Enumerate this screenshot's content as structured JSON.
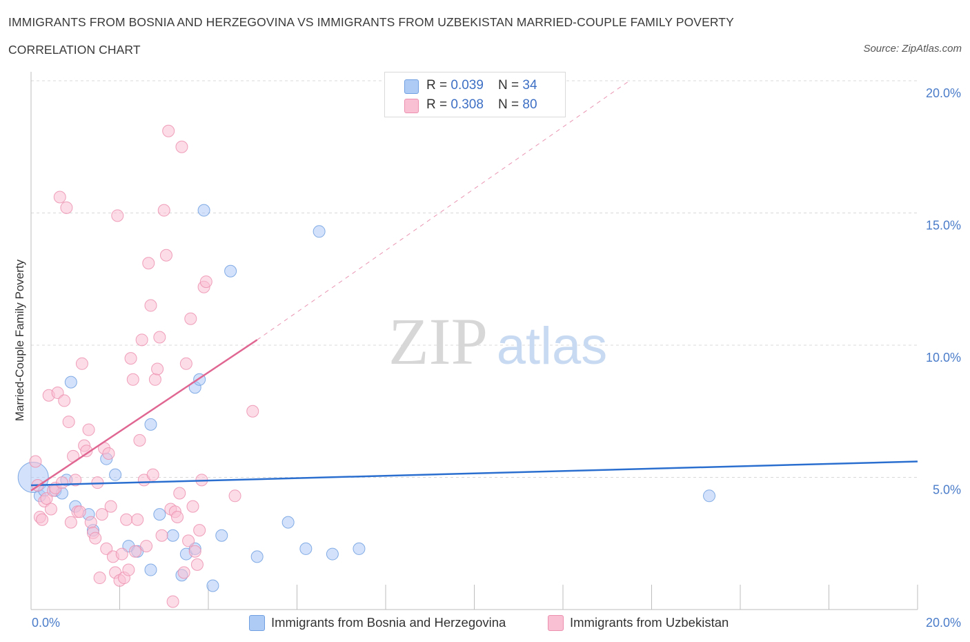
{
  "header": {
    "title_line1": "IMMIGRANTS FROM BOSNIA AND HERZEGOVINA VS IMMIGRANTS FROM UZBEKISTAN MARRIED-COUPLE FAMILY POVERTY",
    "title_line2": "CORRELATION CHART",
    "source": "Source: ZipAtlas.com"
  },
  "watermark": {
    "zip": "ZIP",
    "atlas": "atlas"
  },
  "legend": {
    "r_label": "R = ",
    "n_label": "N = ",
    "rows": [
      {
        "r": "0.039",
        "n": "34"
      },
      {
        "r": "0.308",
        "n": "80"
      }
    ]
  },
  "colors": {
    "bosnia_fill": "#aecbf5",
    "bosnia_stroke": "#6f9fe0",
    "bosnia_line": "#2a6fcf",
    "uzbek_fill": "#f9c0d3",
    "uzbek_stroke": "#ec8fae",
    "uzbek_line": "#e06792",
    "grid": "#d8d8d8",
    "axis_text": "#4a7cc9"
  },
  "chart_data": {
    "type": "scatter",
    "title": "IMMIGRANTS FROM BOSNIA AND HERZEGOVINA VS IMMIGRANTS FROM UZBEKISTAN MARRIED-COUPLE FAMILY POVERTY CORRELATION CHART",
    "xlabel": "",
    "ylabel": "Married-Couple Family Poverty",
    "xlim": [
      0,
      20
    ],
    "ylim": [
      0,
      20
    ],
    "x_tick_labels": [
      "0.0%",
      "20.0%"
    ],
    "y_ticks": [
      5,
      10,
      15,
      20
    ],
    "y_tick_labels": [
      "5.0%",
      "10.0%",
      "15.0%",
      "20.0%"
    ],
    "grid": true,
    "legend_position": "top-center",
    "series": [
      {
        "name": "Immigrants from Bosnia and Herzegovina",
        "R": 0.039,
        "N": 34,
        "trend": {
          "x": [
            0,
            20
          ],
          "y": [
            4.7,
            5.6
          ]
        },
        "points": [
          [
            0.05,
            5.0
          ],
          [
            0.2,
            4.3
          ],
          [
            0.3,
            4.5
          ],
          [
            0.55,
            4.5
          ],
          [
            0.7,
            4.4
          ],
          [
            0.8,
            4.9
          ],
          [
            0.9,
            8.6
          ],
          [
            1.0,
            3.9
          ],
          [
            1.3,
            3.6
          ],
          [
            1.4,
            3.0
          ],
          [
            1.7,
            5.7
          ],
          [
            1.9,
            5.1
          ],
          [
            2.2,
            2.4
          ],
          [
            2.4,
            2.2
          ],
          [
            2.7,
            7.0
          ],
          [
            2.7,
            1.5
          ],
          [
            2.9,
            3.6
          ],
          [
            3.2,
            2.8
          ],
          [
            3.4,
            1.3
          ],
          [
            3.5,
            2.1
          ],
          [
            3.7,
            2.3
          ],
          [
            3.7,
            8.4
          ],
          [
            3.8,
            8.7
          ],
          [
            3.9,
            15.1
          ],
          [
            4.1,
            0.9
          ],
          [
            4.3,
            2.8
          ],
          [
            4.5,
            12.8
          ],
          [
            5.1,
            2.0
          ],
          [
            5.8,
            3.3
          ],
          [
            6.2,
            2.3
          ],
          [
            6.5,
            14.3
          ],
          [
            6.8,
            2.1
          ],
          [
            7.4,
            2.3
          ],
          [
            15.3,
            4.3
          ]
        ]
      },
      {
        "name": "Immigrants from Uzbekistan",
        "R": 0.308,
        "N": 80,
        "trend": {
          "x": [
            0,
            5.1
          ],
          "y": [
            4.5,
            10.2
          ],
          "dashed_extension": {
            "x": [
              5.1,
              13.5
            ],
            "y": [
              10.2,
              20.0
            ]
          }
        },
        "points": [
          [
            0.1,
            5.6
          ],
          [
            0.15,
            4.7
          ],
          [
            0.2,
            3.5
          ],
          [
            0.25,
            3.4
          ],
          [
            0.3,
            4.1
          ],
          [
            0.35,
            4.2
          ],
          [
            0.4,
            8.1
          ],
          [
            0.45,
            3.8
          ],
          [
            0.5,
            4.5
          ],
          [
            0.55,
            4.6
          ],
          [
            0.6,
            8.2
          ],
          [
            0.65,
            15.6
          ],
          [
            0.7,
            4.8
          ],
          [
            0.75,
            7.9
          ],
          [
            0.8,
            15.2
          ],
          [
            0.85,
            7.1
          ],
          [
            0.9,
            3.3
          ],
          [
            0.95,
            5.8
          ],
          [
            1.0,
            4.9
          ],
          [
            1.05,
            3.7
          ],
          [
            1.1,
            3.7
          ],
          [
            1.15,
            9.3
          ],
          [
            1.2,
            6.2
          ],
          [
            1.25,
            6.0
          ],
          [
            1.3,
            6.8
          ],
          [
            1.35,
            3.3
          ],
          [
            1.4,
            2.9
          ],
          [
            1.45,
            2.7
          ],
          [
            1.5,
            4.8
          ],
          [
            1.55,
            1.2
          ],
          [
            1.6,
            3.6
          ],
          [
            1.65,
            6.1
          ],
          [
            1.7,
            2.3
          ],
          [
            1.75,
            5.9
          ],
          [
            1.8,
            3.9
          ],
          [
            1.85,
            2.0
          ],
          [
            1.9,
            1.4
          ],
          [
            1.95,
            14.9
          ],
          [
            2.0,
            1.1
          ],
          [
            2.05,
            2.1
          ],
          [
            2.1,
            1.2
          ],
          [
            2.15,
            3.4
          ],
          [
            2.2,
            1.5
          ],
          [
            2.25,
            9.5
          ],
          [
            2.3,
            8.7
          ],
          [
            2.35,
            2.2
          ],
          [
            2.4,
            3.4
          ],
          [
            2.45,
            6.4
          ],
          [
            2.5,
            10.2
          ],
          [
            2.55,
            4.9
          ],
          [
            2.6,
            2.4
          ],
          [
            2.65,
            13.1
          ],
          [
            2.7,
            11.5
          ],
          [
            2.75,
            5.1
          ],
          [
            2.8,
            8.7
          ],
          [
            2.85,
            9.1
          ],
          [
            2.9,
            10.3
          ],
          [
            2.95,
            2.8
          ],
          [
            3.0,
            15.1
          ],
          [
            3.05,
            13.4
          ],
          [
            3.1,
            18.1
          ],
          [
            3.15,
            3.8
          ],
          [
            3.2,
            0.3
          ],
          [
            3.25,
            3.7
          ],
          [
            3.3,
            3.5
          ],
          [
            3.35,
            4.4
          ],
          [
            3.4,
            17.5
          ],
          [
            3.45,
            1.4
          ],
          [
            3.5,
            9.3
          ],
          [
            3.55,
            2.6
          ],
          [
            3.6,
            11.0
          ],
          [
            3.65,
            3.9
          ],
          [
            3.7,
            2.2
          ],
          [
            3.75,
            1.7
          ],
          [
            3.8,
            3.0
          ],
          [
            3.85,
            4.9
          ],
          [
            3.9,
            12.2
          ],
          [
            3.95,
            12.4
          ],
          [
            4.6,
            4.3
          ],
          [
            5.0,
            7.5
          ]
        ]
      }
    ]
  },
  "bottom_legend": {
    "items": [
      "Immigrants from Bosnia and Herzegovina",
      "Immigrants from Uzbekistan"
    ]
  }
}
